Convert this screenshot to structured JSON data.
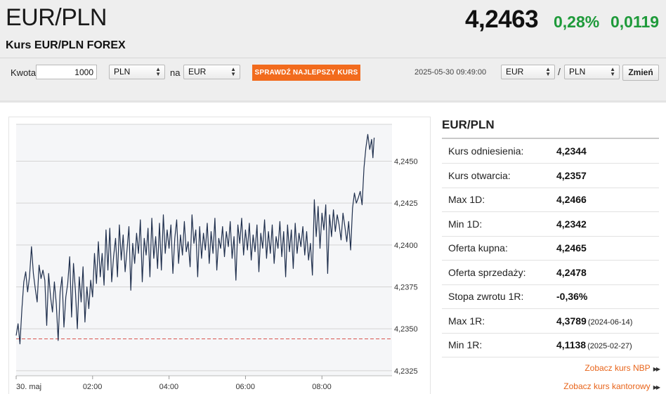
{
  "header": {
    "pair": "EUR/PLN",
    "subtitle": "Kurs EUR/PLN FOREX",
    "price": "4,2463",
    "change_pct": "0,28%",
    "change_abs": "0,0119"
  },
  "converter": {
    "amount_label": "Kwota",
    "amount_value": "1000",
    "from_currency": "PLN",
    "to_label": "na",
    "to_currency": "EUR",
    "best_rate_button": "SPRAWDŹ NAJLEPSZY KURS",
    "timestamp": "2025-05-30 09:49:00",
    "pair_base": "EUR",
    "pair_separator": "/",
    "pair_quote": "PLN",
    "change_button": "Zmień"
  },
  "panel": {
    "title": "EUR/PLN",
    "rows": [
      {
        "label": "Kurs odniesienia:",
        "value": "4,2344",
        "date": ""
      },
      {
        "label": "Kurs otwarcia:",
        "value": "4,2357",
        "date": ""
      },
      {
        "label": "Max 1D:",
        "value": "4,2466",
        "date": ""
      },
      {
        "label": "Min 1D:",
        "value": "4,2342",
        "date": ""
      },
      {
        "label": "Oferta kupna:",
        "value": "4,2465",
        "date": ""
      },
      {
        "label": "Oferta sprzedaży:",
        "value": "4,2478",
        "date": ""
      },
      {
        "label": "Stopa zwrotu 1R:",
        "value": "-0,36%",
        "date": ""
      },
      {
        "label": "Max 1R:",
        "value": "4,3789",
        "date": "(2024-06-14)"
      },
      {
        "label": "Min 1R:",
        "value": "4,1138",
        "date": "(2025-02-27)"
      }
    ],
    "links": [
      "Zobacz kurs NBP",
      "Zobacz kurs kantorowy"
    ]
  },
  "colors": {
    "accent": "#f26b1d",
    "positive": "#1e9a3a",
    "line": "#1f2f4d",
    "reference_line": "#d9534f",
    "link": "#e8641a"
  },
  "chart_data": {
    "type": "line",
    "x_unit": "time (minutes since 00:00, 30 maj)",
    "x_range": [
      0,
      590
    ],
    "y_range": [
      4.2322,
      4.2472
    ],
    "y_ticks": [
      4.2325,
      4.235,
      4.2375,
      4.24,
      4.2425,
      4.245
    ],
    "y_tick_labels": [
      "4,2325",
      "4,2350",
      "4,2375",
      "4,2400",
      "4,2425",
      "4,2450"
    ],
    "x_ticks": [
      0,
      120,
      240,
      360,
      480
    ],
    "x_tick_labels": [
      "30. maj",
      "02:00",
      "04:00",
      "06:00",
      "08:00"
    ],
    "reference_value": 4.2344,
    "series": [
      {
        "values": [
          [
            0,
            4.2346
          ],
          [
            3,
            4.2353
          ],
          [
            6,
            4.2341
          ],
          [
            9,
            4.2362
          ],
          [
            12,
            4.2378
          ],
          [
            15,
            4.2384
          ],
          [
            18,
            4.2372
          ],
          [
            21,
            4.2381
          ],
          [
            24,
            4.2399
          ],
          [
            27,
            4.2383
          ],
          [
            30,
            4.2374
          ],
          [
            33,
            4.2366
          ],
          [
            36,
            4.2388
          ],
          [
            39,
            4.238
          ],
          [
            42,
            4.2385
          ],
          [
            45,
            4.2379
          ],
          [
            48,
            4.2352
          ],
          [
            51,
            4.2383
          ],
          [
            54,
            4.2369
          ],
          [
            57,
            4.236
          ],
          [
            60,
            4.2378
          ],
          [
            63,
            4.2365
          ],
          [
            66,
            4.2343
          ],
          [
            69,
            4.2372
          ],
          [
            72,
            4.2381
          ],
          [
            75,
            4.2351
          ],
          [
            78,
            4.2369
          ],
          [
            81,
            4.2377
          ],
          [
            84,
            4.2393
          ],
          [
            87,
            4.2357
          ],
          [
            90,
            4.2389
          ],
          [
            93,
            4.2373
          ],
          [
            96,
            4.235
          ],
          [
            99,
            4.2381
          ],
          [
            102,
            4.2366
          ],
          [
            105,
            4.2387
          ],
          [
            108,
            4.2354
          ],
          [
            111,
            4.2375
          ],
          [
            114,
            4.2362
          ],
          [
            117,
            4.2379
          ],
          [
            120,
            4.2369
          ],
          [
            123,
            4.2395
          ],
          [
            126,
            4.2377
          ],
          [
            129,
            4.2402
          ],
          [
            132,
            4.2381
          ],
          [
            135,
            4.2395
          ],
          [
            138,
            4.2376
          ],
          [
            141,
            4.2409
          ],
          [
            144,
            4.2385
          ],
          [
            147,
            4.241
          ],
          [
            150,
            4.2378
          ],
          [
            153,
            4.2393
          ],
          [
            156,
            4.2404
          ],
          [
            159,
            4.2381
          ],
          [
            162,
            4.2412
          ],
          [
            165,
            4.2391
          ],
          [
            168,
            4.2406
          ],
          [
            171,
            4.2384
          ],
          [
            174,
            4.2397
          ],
          [
            177,
            4.2411
          ],
          [
            180,
            4.2373
          ],
          [
            183,
            4.2401
          ],
          [
            186,
            4.2389
          ],
          [
            189,
            4.2407
          ],
          [
            192,
            4.2395
          ],
          [
            195,
            4.2415
          ],
          [
            198,
            4.2378
          ],
          [
            201,
            4.2404
          ],
          [
            204,
            4.2394
          ],
          [
            207,
            4.241
          ],
          [
            210,
            4.2381
          ],
          [
            213,
            4.2416
          ],
          [
            216,
            4.2392
          ],
          [
            219,
            4.2405
          ],
          [
            222,
            4.2386
          ],
          [
            225,
            4.2413
          ],
          [
            228,
            4.2385
          ],
          [
            231,
            4.2418
          ],
          [
            234,
            4.2395
          ],
          [
            237,
            4.2409
          ],
          [
            240,
            4.2398
          ],
          [
            243,
            4.2412
          ],
          [
            246,
            4.2383
          ],
          [
            249,
            4.2404
          ],
          [
            252,
            4.2415
          ],
          [
            255,
            4.2389
          ],
          [
            258,
            4.2406
          ],
          [
            261,
            4.2394
          ],
          [
            264,
            4.2414
          ],
          [
            267,
            4.2396
          ],
          [
            270,
            4.2402
          ],
          [
            273,
            4.2387
          ],
          [
            276,
            4.2418
          ],
          [
            279,
            4.2401
          ],
          [
            282,
            4.2409
          ],
          [
            285,
            4.2381
          ],
          [
            288,
            4.2411
          ],
          [
            291,
            4.2392
          ],
          [
            294,
            4.2407
          ],
          [
            297,
            4.2397
          ],
          [
            300,
            4.2413
          ],
          [
            303,
            4.2389
          ],
          [
            306,
            4.2408
          ],
          [
            309,
            4.2395
          ],
          [
            312,
            4.2416
          ],
          [
            315,
            4.2385
          ],
          [
            318,
            4.2404
          ],
          [
            321,
            4.2398
          ],
          [
            324,
            4.2411
          ],
          [
            327,
            4.2393
          ],
          [
            330,
            4.2408
          ],
          [
            333,
            4.2399
          ],
          [
            336,
            4.2414
          ],
          [
            339,
            4.2392
          ],
          [
            342,
            4.2405
          ],
          [
            345,
            4.2379
          ],
          [
            348,
            4.2412
          ],
          [
            351,
            4.2401
          ],
          [
            354,
            4.2416
          ],
          [
            357,
            4.2394
          ],
          [
            360,
            4.2409
          ],
          [
            363,
            4.2397
          ],
          [
            366,
            4.2413
          ],
          [
            369,
            4.2391
          ],
          [
            372,
            4.2406
          ],
          [
            375,
            4.2396
          ],
          [
            378,
            4.2412
          ],
          [
            381,
            4.2384
          ],
          [
            384,
            4.2407
          ],
          [
            387,
            4.2398
          ],
          [
            390,
            4.2415
          ],
          [
            393,
            4.2392
          ],
          [
            396,
            4.2408
          ],
          [
            399,
            4.2395
          ],
          [
            402,
            4.2412
          ],
          [
            405,
            4.2389
          ],
          [
            408,
            4.2405
          ],
          [
            411,
            4.2398
          ],
          [
            414,
            4.2414
          ],
          [
            417,
            4.2393
          ],
          [
            420,
            4.2408
          ],
          [
            423,
            4.2381
          ],
          [
            426,
            4.2412
          ],
          [
            429,
            4.2396
          ],
          [
            432,
            4.2409
          ],
          [
            435,
            4.2386
          ],
          [
            438,
            4.2413
          ],
          [
            441,
            4.2395
          ],
          [
            444,
            4.2407
          ],
          [
            447,
            4.2399
          ],
          [
            450,
            4.2411
          ],
          [
            453,
            4.2394
          ],
          [
            456,
            4.2408
          ],
          [
            459,
            4.2391
          ],
          [
            462,
            4.2401
          ],
          [
            465,
            4.2382
          ],
          [
            468,
            4.2427
          ],
          [
            471,
            4.2405
          ],
          [
            474,
            4.2423
          ],
          [
            477,
            4.2398
          ],
          [
            480,
            4.2419
          ],
          [
            483,
            4.2409
          ],
          [
            486,
            4.2424
          ],
          [
            489,
            4.2383
          ],
          [
            492,
            4.2418
          ],
          [
            495,
            4.2405
          ],
          [
            498,
            4.2421
          ],
          [
            501,
            4.2408
          ],
          [
            504,
            4.2418
          ],
          [
            507,
            4.2412
          ],
          [
            510,
            4.2403
          ],
          [
            513,
            4.2419
          ],
          [
            516,
            4.2411
          ],
          [
            519,
            4.2402
          ],
          [
            522,
            4.2414
          ],
          [
            525,
            4.2397
          ],
          [
            528,
            4.2422
          ],
          [
            531,
            4.2431
          ],
          [
            534,
            4.2425
          ],
          [
            537,
            4.2428
          ],
          [
            540,
            4.2432
          ],
          [
            543,
            4.2424
          ],
          [
            546,
            4.2446
          ],
          [
            549,
            4.2458
          ],
          [
            552,
            4.2466
          ],
          [
            555,
            4.2457
          ],
          [
            558,
            4.2463
          ],
          [
            560,
            4.2452
          ],
          [
            562,
            4.2464
          ]
        ]
      }
    ],
    "grid": true,
    "legend": "none"
  }
}
